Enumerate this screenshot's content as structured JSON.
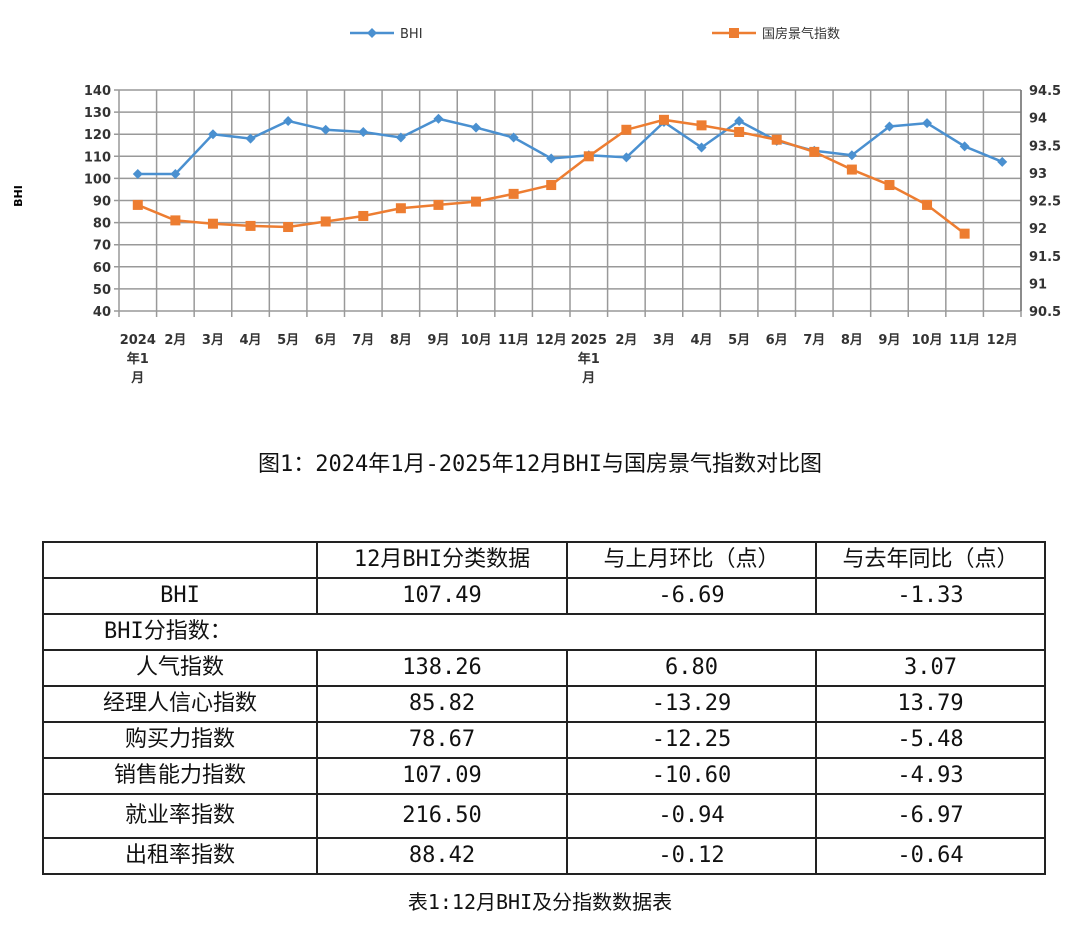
{
  "chart_data": {
    "type": "line",
    "ylabel": "BHI",
    "ylim_left": [
      40,
      140
    ],
    "yticks_left": [
      "40",
      "50",
      "60",
      "70",
      "80",
      "90",
      "100",
      "110",
      "120",
      "130",
      "140"
    ],
    "ylim_right": [
      90.5,
      94.5
    ],
    "yticks_right": [
      "90.5",
      "91",
      "91.5",
      "92",
      "92.5",
      "93",
      "93.5",
      "94",
      "94.5"
    ],
    "grid": true,
    "legend": "top",
    "categories": [
      "2024年1月",
      "2月",
      "3月",
      "4月",
      "5月",
      "6月",
      "7月",
      "8月",
      "9月",
      "10月",
      "11月",
      "12月",
      "2025年1月",
      "2月",
      "3月",
      "4月",
      "5月",
      "6月",
      "7月",
      "8月",
      "9月",
      "10月",
      "11月",
      "12月"
    ],
    "series": [
      {
        "name": "BHI",
        "axis": "left",
        "color": "#4a90d0",
        "marker": "diamond",
        "values": [
          102,
          102,
          120,
          118,
          126,
          122,
          121,
          118.5,
          127,
          123,
          118.5,
          109,
          110.5,
          109.5,
          125.5,
          114,
          126,
          117,
          112.5,
          110.5,
          123.5,
          125,
          114.5,
          107.5
        ]
      },
      {
        "name": "国房景气指数",
        "axis": "right",
        "color": "#ed7d31",
        "marker": "square",
        "values": [
          92.42,
          92.14,
          92.08,
          92.04,
          92.02,
          92.12,
          92.22,
          92.36,
          92.42,
          92.48,
          92.62,
          92.78,
          93.3,
          93.78,
          93.96,
          93.86,
          93.74,
          93.6,
          93.38,
          93.06,
          92.78,
          92.42,
          91.9,
          null
        ]
      }
    ]
  },
  "figure_caption": "图1：2024年1月-2025年12月BHI与国房景气指数对比图",
  "table": {
    "headers": [
      "",
      "12月BHI分类数据",
      "与上月环比（点）",
      "与去年同比（点）"
    ],
    "bhi_row": [
      "BHI",
      "107.49",
      "-6.69",
      "-1.33"
    ],
    "subindex_label": "BHI分指数：",
    "rows": [
      [
        "人气指数",
        "138.26",
        "6.80",
        "3.07"
      ],
      [
        "经理人信心指数",
        "85.82",
        "-13.29",
        "13.79"
      ],
      [
        "购买力指数",
        "78.67",
        "-12.25",
        "-5.48"
      ],
      [
        "销售能力指数",
        "107.09",
        "-10.60",
        "-4.93"
      ],
      [
        "就业率指数",
        "216.50",
        "-0.94",
        "-6.97"
      ],
      [
        "出租率指数",
        "88.42",
        "-0.12",
        "-0.64"
      ]
    ],
    "caption": "表1:12月BHI及分指数数据表"
  }
}
